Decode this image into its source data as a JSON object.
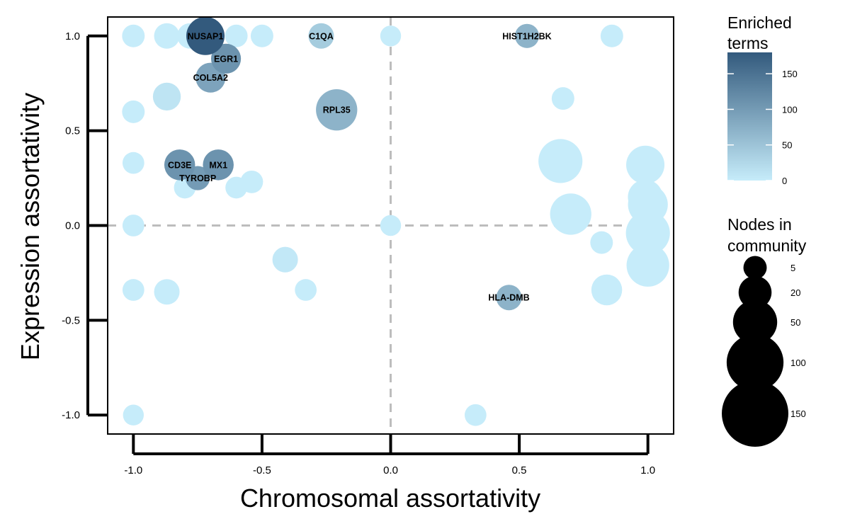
{
  "chart_data": {
    "type": "scatter",
    "xlabel": "Chromosomal assortativity",
    "ylabel": "Expression assortativity",
    "xlim": [
      -1.1,
      1.1
    ],
    "ylim": [
      -1.1,
      1.1
    ],
    "x_ticks": [
      -1.0,
      -0.5,
      0.0,
      0.5,
      1.0
    ],
    "x_tick_labels": [
      "-1.0",
      "-0.5",
      "0.0",
      "0.5",
      "1.0"
    ],
    "y_ticks": [
      1.0,
      0.5,
      0.0,
      -0.5,
      -1.0
    ],
    "y_tick_labels": [
      "1.0",
      "0.5",
      "0.0",
      "-0.5",
      "-1.0"
    ],
    "grid": false,
    "reference_lines": {
      "x": 0,
      "y": 0,
      "style": "dashed",
      "color": "#bdbdbd"
    },
    "color_scale": {
      "low": "#c6ecfa",
      "high": "#335a7d",
      "min": 0,
      "max": 180
    },
    "size_scale": {
      "min_nodes": 0,
      "max_nodes": 160
    },
    "legends": {
      "color": {
        "title": [
          "Enriched",
          "terms"
        ],
        "ticks": [
          150,
          100,
          50,
          0
        ],
        "tick_labels": [
          "150",
          "100",
          "50",
          "0"
        ],
        "position": "right"
      },
      "size": {
        "title": [
          "Nodes in",
          "community"
        ],
        "ticks": [
          5,
          20,
          50,
          100,
          150
        ],
        "tick_labels": [
          "5",
          "20",
          "50",
          "100",
          "150"
        ],
        "position": "right"
      }
    },
    "points": [
      {
        "x": -0.72,
        "y": 1.0,
        "nodes": 40,
        "enriched": 180,
        "label": "NUSAP1"
      },
      {
        "x": -0.64,
        "y": 0.88,
        "nodes": 18,
        "enriched": 110,
        "label": "EGR1"
      },
      {
        "x": -0.7,
        "y": 0.78,
        "nodes": 18,
        "enriched": 90,
        "label": "COL5A2"
      },
      {
        "x": -0.27,
        "y": 1.0,
        "nodes": 10,
        "enriched": 40,
        "label": "C1QA"
      },
      {
        "x": 0.53,
        "y": 1.0,
        "nodes": 8,
        "enriched": 70,
        "label": "HIST1H2BK"
      },
      {
        "x": -0.21,
        "y": 0.61,
        "nodes": 50,
        "enriched": 70,
        "label": "RPL35"
      },
      {
        "x": -0.82,
        "y": 0.32,
        "nodes": 20,
        "enriched": 110,
        "label": "CD3E"
      },
      {
        "x": -0.67,
        "y": 0.32,
        "nodes": 20,
        "enriched": 110,
        "label": "MX1"
      },
      {
        "x": -0.75,
        "y": 0.25,
        "nodes": 8,
        "enriched": 100,
        "label": "TYROBP"
      },
      {
        "x": 0.46,
        "y": -0.38,
        "nodes": 10,
        "enriched": 70,
        "label": "HLA-DMB"
      },
      {
        "x": -1.0,
        "y": 1.0,
        "nodes": 6,
        "enriched": 0
      },
      {
        "x": -0.87,
        "y": 1.0,
        "nodes": 10,
        "enriched": 0
      },
      {
        "x": -0.78,
        "y": 1.0,
        "nodes": 10,
        "enriched": 0
      },
      {
        "x": -0.6,
        "y": 1.0,
        "nodes": 6,
        "enriched": 0
      },
      {
        "x": -0.5,
        "y": 1.0,
        "nodes": 6,
        "enriched": 0
      },
      {
        "x": 0.0,
        "y": 1.0,
        "nodes": 4,
        "enriched": 0
      },
      {
        "x": 0.86,
        "y": 1.0,
        "nodes": 6,
        "enriched": 0
      },
      {
        "x": -0.87,
        "y": 0.68,
        "nodes": 14,
        "enriched": 10
      },
      {
        "x": 0.67,
        "y": 0.67,
        "nodes": 6,
        "enriched": 0
      },
      {
        "x": -1.0,
        "y": 0.6,
        "nodes": 6,
        "enriched": 0
      },
      {
        "x": -1.0,
        "y": 0.33,
        "nodes": 5,
        "enriched": 0
      },
      {
        "x": -0.8,
        "y": 0.2,
        "nodes": 5,
        "enriched": 0
      },
      {
        "x": -0.6,
        "y": 0.2,
        "nodes": 5,
        "enriched": 0
      },
      {
        "x": -0.54,
        "y": 0.23,
        "nodes": 6,
        "enriched": 0
      },
      {
        "x": 0.66,
        "y": 0.34,
        "nodes": 60,
        "enriched": 0
      },
      {
        "x": 0.99,
        "y": 0.32,
        "nodes": 40,
        "enriched": 0
      },
      {
        "x": 0.99,
        "y": 0.15,
        "nodes": 30,
        "enriched": 0
      },
      {
        "x": 0.7,
        "y": 0.06,
        "nodes": 50,
        "enriched": 0
      },
      {
        "x": 1.0,
        "y": 0.11,
        "nodes": 45,
        "enriched": 0
      },
      {
        "x": -1.0,
        "y": 0.0,
        "nodes": 5,
        "enriched": 0
      },
      {
        "x": 0.0,
        "y": 0.0,
        "nodes": 4,
        "enriched": 0
      },
      {
        "x": 1.0,
        "y": -0.04,
        "nodes": 60,
        "enriched": 0
      },
      {
        "x": 0.82,
        "y": -0.09,
        "nodes": 6,
        "enriched": 0
      },
      {
        "x": 1.0,
        "y": -0.21,
        "nodes": 55,
        "enriched": 0
      },
      {
        "x": -0.41,
        "y": -0.18,
        "nodes": 10,
        "enriched": 5
      },
      {
        "x": -1.0,
        "y": -0.34,
        "nodes": 5,
        "enriched": 0
      },
      {
        "x": -0.87,
        "y": -0.35,
        "nodes": 10,
        "enriched": 0
      },
      {
        "x": -0.33,
        "y": -0.34,
        "nodes": 5,
        "enriched": 0
      },
      {
        "x": 0.84,
        "y": -0.34,
        "nodes": 20,
        "enriched": 0
      },
      {
        "x": -1.0,
        "y": -1.0,
        "nodes": 4,
        "enriched": 0
      },
      {
        "x": 0.33,
        "y": -1.0,
        "nodes": 5,
        "enriched": 0
      }
    ]
  }
}
